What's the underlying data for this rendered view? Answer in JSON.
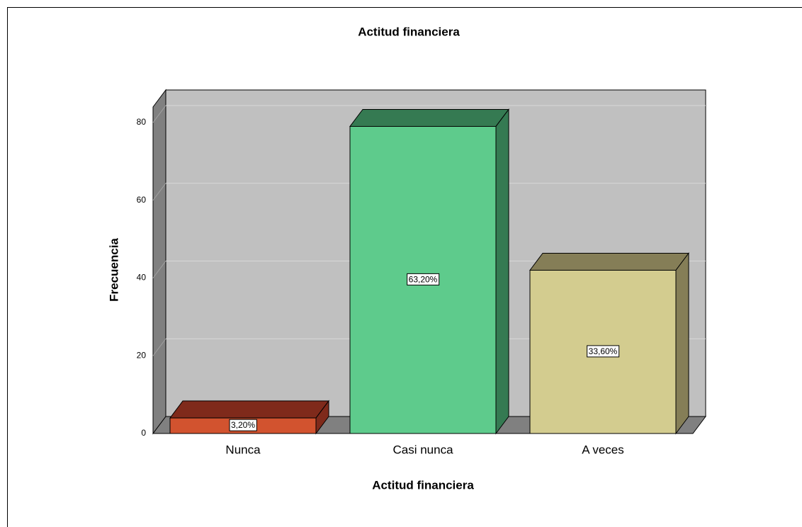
{
  "chart_data": {
    "type": "bar3d",
    "title": "Actitud financiera",
    "x_label": "Actitud financiera",
    "y_label": "Frecuencia",
    "categories": [
      "Nunca",
      "Casi nunca",
      "A veces"
    ],
    "values": [
      4,
      79,
      42
    ],
    "percent": [
      3.2,
      63.2,
      33.6
    ],
    "percent_labels": [
      "3,20%",
      "63,20%",
      "33,60%"
    ],
    "colors": [
      "#d2532f",
      "#5ecb8c",
      "#d3cc8f"
    ],
    "dark_colors": [
      "#7f2a1b",
      "#357a52",
      "#857e57"
    ],
    "ylim": [
      0,
      84
    ],
    "yticks": [
      0,
      20,
      40,
      60,
      80
    ],
    "grid": true
  }
}
